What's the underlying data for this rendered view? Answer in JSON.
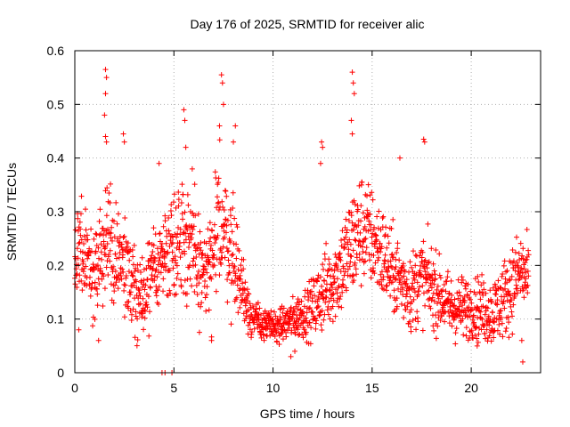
{
  "chart_data": {
    "type": "scatter",
    "title": "Day 176 of 2025, SRMTID for receiver alic",
    "xlabel": "GPS time / hours",
    "ylabel": "SRMTID / TECUs",
    "xlim": [
      0,
      23.5
    ],
    "ylim": [
      0,
      0.6
    ],
    "x_ticks": [
      0,
      5,
      10,
      15,
      20
    ],
    "x_tick_labels": [
      "0",
      "5",
      "10",
      "15",
      "20"
    ],
    "y_ticks": [
      0,
      0.1,
      0.2,
      0.3,
      0.4,
      0.5,
      0.6
    ],
    "y_tick_labels": [
      "0",
      "0.1",
      "0.2",
      "0.3",
      "0.4",
      "0.5",
      "0.6"
    ],
    "grid": true,
    "marker": "plus",
    "series": [
      {
        "name": "SRMTID",
        "color": "#ff0000",
        "sample_interval_hours": 0.0125,
        "envelope_hours": [
          0,
          0.3,
          0.6,
          1.0,
          1.5,
          1.6,
          2.0,
          2.5,
          3.0,
          3.5,
          4.0,
          4.5,
          5.0,
          5.5,
          6.0,
          6.5,
          7.0,
          7.3,
          7.5,
          8.0,
          8.5,
          9.0,
          9.5,
          10.0,
          10.5,
          11.0,
          11.5,
          12.0,
          12.5,
          13.0,
          13.5,
          14.0,
          14.5,
          15.0,
          15.5,
          16.0,
          16.5,
          17.0,
          17.5,
          18.0,
          18.5,
          19.0,
          19.5,
          20.0,
          20.5,
          21.0,
          21.5,
          22.0,
          22.5,
          22.9
        ],
        "envelope_mean": [
          0.19,
          0.23,
          0.2,
          0.17,
          0.24,
          0.26,
          0.2,
          0.21,
          0.15,
          0.14,
          0.19,
          0.22,
          0.25,
          0.26,
          0.22,
          0.18,
          0.2,
          0.3,
          0.27,
          0.22,
          0.15,
          0.1,
          0.09,
          0.085,
          0.09,
          0.1,
          0.11,
          0.12,
          0.15,
          0.17,
          0.2,
          0.24,
          0.27,
          0.25,
          0.22,
          0.19,
          0.17,
          0.15,
          0.18,
          0.16,
          0.14,
          0.12,
          0.12,
          0.12,
          0.12,
          0.11,
          0.13,
          0.16,
          0.19,
          0.17
        ],
        "envelope_spread": [
          0.05,
          0.06,
          0.05,
          0.05,
          0.08,
          0.1,
          0.06,
          0.06,
          0.05,
          0.05,
          0.05,
          0.05,
          0.07,
          0.08,
          0.07,
          0.06,
          0.07,
          0.09,
          0.08,
          0.06,
          0.04,
          0.025,
          0.02,
          0.02,
          0.02,
          0.025,
          0.03,
          0.035,
          0.05,
          0.05,
          0.06,
          0.07,
          0.07,
          0.06,
          0.06,
          0.05,
          0.05,
          0.05,
          0.05,
          0.05,
          0.04,
          0.04,
          0.04,
          0.035,
          0.04,
          0.04,
          0.045,
          0.05,
          0.05,
          0.05
        ],
        "notable_points": [
          {
            "x": 1.55,
            "y": 0.565
          },
          {
            "x": 1.6,
            "y": 0.55
          },
          {
            "x": 1.55,
            "y": 0.52
          },
          {
            "x": 1.5,
            "y": 0.48
          },
          {
            "x": 1.55,
            "y": 0.44
          },
          {
            "x": 1.6,
            "y": 0.43
          },
          {
            "x": 2.45,
            "y": 0.445
          },
          {
            "x": 2.5,
            "y": 0.43
          },
          {
            "x": 5.5,
            "y": 0.49
          },
          {
            "x": 5.55,
            "y": 0.47
          },
          {
            "x": 5.6,
            "y": 0.42
          },
          {
            "x": 7.4,
            "y": 0.555
          },
          {
            "x": 7.45,
            "y": 0.54
          },
          {
            "x": 7.5,
            "y": 0.5
          },
          {
            "x": 7.3,
            "y": 0.46
          },
          {
            "x": 8.1,
            "y": 0.46
          },
          {
            "x": 8.0,
            "y": 0.43
          },
          {
            "x": 12.45,
            "y": 0.43
          },
          {
            "x": 12.5,
            "y": 0.42
          },
          {
            "x": 12.4,
            "y": 0.39
          },
          {
            "x": 14.0,
            "y": 0.56
          },
          {
            "x": 14.05,
            "y": 0.54
          },
          {
            "x": 14.1,
            "y": 0.52
          },
          {
            "x": 13.95,
            "y": 0.47
          },
          {
            "x": 14.0,
            "y": 0.445
          },
          {
            "x": 17.6,
            "y": 0.435
          },
          {
            "x": 17.65,
            "y": 0.43
          },
          {
            "x": 16.4,
            "y": 0.4
          },
          {
            "x": 4.25,
            "y": 0.39
          },
          {
            "x": 4.4,
            "y": 0.0
          },
          {
            "x": 4.55,
            "y": 0.0
          },
          {
            "x": 4.9,
            "y": 0.0
          },
          {
            "x": 22.6,
            "y": 0.02
          },
          {
            "x": 22.55,
            "y": 0.06
          },
          {
            "x": 10.9,
            "y": 0.03
          },
          {
            "x": 11.1,
            "y": 0.04
          },
          {
            "x": 0.2,
            "y": 0.08
          },
          {
            "x": 1.2,
            "y": 0.06
          },
          {
            "x": 20.3,
            "y": 0.05
          },
          {
            "x": 6.9,
            "y": 0.06
          }
        ]
      }
    ]
  }
}
